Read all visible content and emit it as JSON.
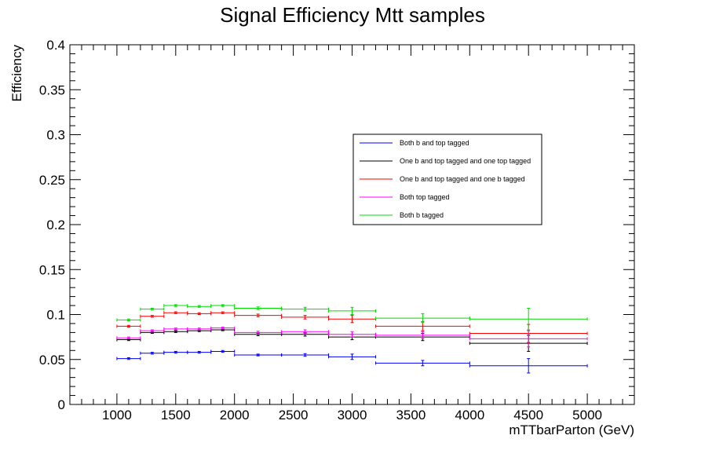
{
  "chart_data": {
    "type": "line",
    "title": "Signal Efficiency Mtt samples",
    "xlabel": "mTTbarParton (GeV)",
    "ylabel": "Efficiency",
    "xlim": [
      600,
      5400
    ],
    "ylim": [
      0,
      0.4
    ],
    "x_ticks": [
      1000,
      1500,
      2000,
      2500,
      3000,
      3500,
      4000,
      4500,
      5000
    ],
    "y_ticks": [
      0,
      0.05,
      0.1,
      0.15,
      0.2,
      0.25,
      0.3,
      0.35,
      0.4
    ],
    "x_tick_labels": [
      "1000",
      "1500",
      "2000",
      "2500",
      "3000",
      "3500",
      "4000",
      "4500",
      "5000"
    ],
    "y_tick_labels": [
      "0",
      "0.05",
      "0.1",
      "0.15",
      "0.2",
      "0.25",
      "0.3",
      "0.35",
      "0.4"
    ],
    "bin_edges": [
      1000,
      1200,
      1400,
      1600,
      1800,
      2000,
      2400,
      2800,
      3200,
      4000,
      5000
    ],
    "legend_position": "top-right",
    "grid": false,
    "series": [
      {
        "name": "Both b and top tagged",
        "color": "#0000ff",
        "values": [
          0.051,
          0.057,
          0.058,
          0.058,
          0.059,
          0.055,
          0.055,
          0.053,
          0.046,
          0.043
        ],
        "errors": [
          0.001,
          0.001,
          0.001,
          0.001,
          0.001,
          0.001,
          0.0015,
          0.003,
          0.003,
          0.008
        ]
      },
      {
        "name": "One b and top tagged and one top tagged",
        "color": "#000000",
        "values": [
          0.072,
          0.08,
          0.081,
          0.082,
          0.083,
          0.078,
          0.078,
          0.075,
          0.075,
          0.068
        ],
        "errors": [
          0.001,
          0.001,
          0.001,
          0.001,
          0.001,
          0.0015,
          0.002,
          0.003,
          0.004,
          0.009
        ]
      },
      {
        "name": "One b and top tagged and one b tagged",
        "color": "#ff0000",
        "values": [
          0.087,
          0.098,
          0.102,
          0.101,
          0.102,
          0.099,
          0.097,
          0.095,
          0.087,
          0.079
        ],
        "errors": [
          0.001,
          0.001,
          0.001,
          0.001,
          0.001,
          0.0015,
          0.002,
          0.004,
          0.005,
          0.01
        ]
      },
      {
        "name": "Both top tagged",
        "color": "#ff00ff",
        "values": [
          0.074,
          0.082,
          0.084,
          0.084,
          0.085,
          0.08,
          0.081,
          0.078,
          0.077,
          0.073
        ],
        "errors": [
          0.001,
          0.001,
          0.001,
          0.001,
          0.001,
          0.0015,
          0.002,
          0.003,
          0.004,
          0.009
        ]
      },
      {
        "name": "Both b tagged",
        "color": "#00dd00",
        "values": [
          0.094,
          0.106,
          0.11,
          0.109,
          0.11,
          0.107,
          0.106,
          0.104,
          0.096,
          0.095
        ],
        "errors": [
          0.001,
          0.001,
          0.001,
          0.001,
          0.001,
          0.0015,
          0.002,
          0.004,
          0.005,
          0.012
        ]
      }
    ]
  }
}
